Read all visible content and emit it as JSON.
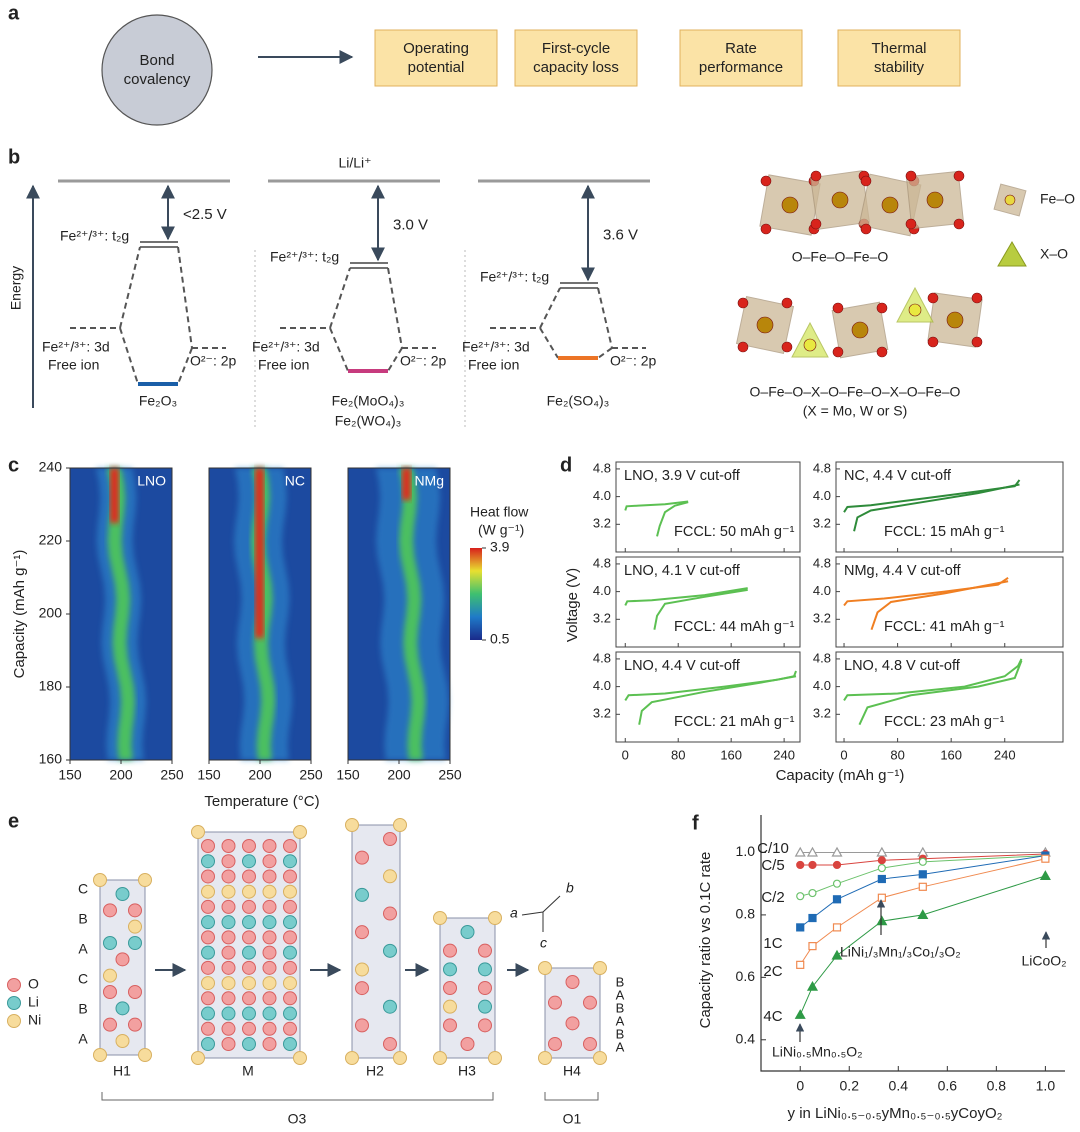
{
  "panel_labels": [
    "a",
    "b",
    "c",
    "d",
    "e",
    "f"
  ],
  "panel_a": {
    "circle": [
      "Bond",
      "covalency"
    ],
    "boxes": [
      [
        "Operating",
        "potential"
      ],
      [
        "First-cycle",
        "capacity loss"
      ],
      [
        "Rate",
        "performance"
      ],
      [
        "Thermal",
        "stability"
      ]
    ]
  },
  "panel_b": {
    "axis_label": "Energy",
    "reference": "Li/Li⁺",
    "diagrams": [
      {
        "gap": "<2.5 V",
        "t2g": "Fe²⁺/³⁺: t₂g",
        "d_level": "Fe²⁺/³⁺: 3d",
        "free_ion": "Free ion",
        "o_level": "O²⁻: 2p",
        "compounds": [
          "Fe₂O₃"
        ],
        "color": "#1a5fa8"
      },
      {
        "gap": "3.0 V",
        "t2g": "Fe²⁺/³⁺: t₂g",
        "d_level": "Fe²⁺/³⁺: 3d",
        "free_ion": "Free ion",
        "o_level": "O²⁻: 2p",
        "compounds": [
          "Fe₂(MoO₄)₃",
          "Fe₂(WO₄)₃"
        ],
        "color": "#c73b7e"
      },
      {
        "gap": "3.6 V",
        "t2g": "Fe²⁺/³⁺: t₂g",
        "d_level": "Fe²⁺/³⁺: 3d",
        "free_ion": "Free ion",
        "o_level": "O²⁻: 2p",
        "compounds": [
          "Fe₂(SO₄)₃"
        ],
        "color": "#ec7426"
      }
    ],
    "structures": {
      "chain_1": "O–Fe–O–Fe–O",
      "chain_2": "O–Fe–O–X–O–Fe–O–X–O–Fe–O",
      "note": "(X = Mo, W or S)",
      "legend": [
        "Fe–O",
        "X–O"
      ]
    }
  },
  "panel_e": {
    "legend": [
      "O",
      "Li",
      "Ni"
    ],
    "stacking_h1": [
      "C",
      "B",
      "A",
      "C",
      "B",
      "A"
    ],
    "stacking_h4": [
      "B",
      "A",
      "B",
      "A",
      "B",
      "A"
    ],
    "phases": [
      "H1",
      "M",
      "H2",
      "H3",
      "H4"
    ],
    "groups": [
      "O3",
      "O1"
    ],
    "axes": [
      "a",
      "b",
      "c"
    ]
  },
  "chart_data": [
    {
      "type": "heatmap",
      "panels": [
        "LNO",
        "NC",
        "NMg"
      ],
      "xlabel": "Temperature (°C)",
      "ylabel": "Capacity (mAh g⁻¹)",
      "xlim": [
        150,
        250
      ],
      "xticks": [
        150,
        200,
        250
      ],
      "ylim": [
        160,
        240
      ],
      "yticks": [
        160,
        180,
        200,
        220,
        240
      ],
      "colorbar": {
        "label": [
          "Heat flow",
          "(W g⁻¹)"
        ],
        "lim": [
          0.5,
          3.9
        ],
        "ticks": [
          0.5,
          3.9
        ]
      }
    },
    {
      "type": "line",
      "xlabel": "Capacity (mAh g⁻¹)",
      "ylabel": "Voltage (V)",
      "ylim": [
        2.4,
        5.0
      ],
      "yticks": [
        3.2,
        {
          "value": 4,
          "label": "4.0"
        },
        4.8
      ],
      "xticks": [
        0,
        80,
        160,
        240
      ],
      "subplots": [
        {
          "title": "LNO, 3.9 V cut-off",
          "note": "FCCL: 50 mAh g⁻¹",
          "color": "#5cc052",
          "xlim": [
            -14,
            264
          ],
          "charge": {
            "x": [
              0,
              2,
              20,
              60,
              95
            ],
            "values": [
              3.6,
              3.72,
              3.74,
              3.78,
              3.86
            ]
          },
          "discharge": {
            "x": [
              95,
              75,
              60,
              52,
              48
            ],
            "values": [
              3.84,
              3.74,
              3.55,
              3.15,
              2.85
            ]
          }
        },
        {
          "title": "NC, 4.4 V cut-off",
          "note": "FCCL: 15 mAh g⁻¹",
          "color": "#2e8b3a",
          "xlim": [
            -12,
            327
          ],
          "charge": {
            "x": [
              0,
              5,
              40,
              120,
              200,
              255,
              262
            ],
            "values": [
              3.55,
              3.7,
              3.75,
              3.95,
              4.15,
              4.3,
              4.48
            ]
          },
          "discharge": {
            "x": [
              262,
              200,
              120,
              40,
              20,
              15
            ],
            "values": [
              4.35,
              4.1,
              3.85,
              3.6,
              3.4,
              3.0
            ]
          }
        },
        {
          "title": "LNO, 4.1 V cut-off",
          "note": "FCCL: 44 mAh g⁻¹",
          "color": "#5cc052",
          "xlim": [
            -14,
            264
          ],
          "charge": {
            "x": [
              0,
              3,
              40,
              120,
              185
            ],
            "values": [
              3.6,
              3.72,
              3.75,
              3.9,
              4.1
            ]
          },
          "discharge": {
            "x": [
              185,
              120,
              60,
              48,
              44
            ],
            "values": [
              4.05,
              3.85,
              3.65,
              3.3,
              2.9
            ]
          }
        },
        {
          "title": "NMg, 4.4 V cut-off",
          "note": "FCCL: 41 mAh g⁻¹",
          "color": "#f07f22",
          "xlim": [
            -12,
            327
          ],
          "charge": {
            "x": [
              0,
              5,
              60,
              150,
              230,
              245
            ],
            "values": [
              3.6,
              3.72,
              3.8,
              4.0,
              4.2,
              4.4
            ]
          },
          "discharge": {
            "x": [
              245,
              150,
              70,
              50,
              41
            ],
            "values": [
              4.3,
              3.95,
              3.7,
              3.4,
              2.9
            ]
          }
        },
        {
          "title": "LNO, 4.4 V cut-off",
          "note": "FCCL: 21 mAh g⁻¹",
          "color": "#5cc052",
          "xlim": [
            -14,
            264
          ],
          "charge": {
            "x": [
              0,
              5,
              60,
              150,
              230,
              255,
              258
            ],
            "values": [
              3.6,
              3.75,
              3.8,
              4.0,
              4.2,
              4.3,
              4.45
            ]
          },
          "discharge": {
            "x": [
              258,
              200,
              120,
              40,
              25,
              21
            ],
            "values": [
              4.3,
              4.1,
              3.85,
              3.55,
              3.3,
              2.9
            ]
          }
        },
        {
          "title": "LNO, 4.8 V cut-off",
          "note": "FCCL: 23 mAh g⁻¹",
          "color": "#5cc052",
          "xlim": [
            -12,
            327
          ],
          "charge": {
            "x": [
              0,
              5,
              80,
              180,
              240,
              260,
              265
            ],
            "values": [
              3.6,
              3.75,
              3.8,
              4.0,
              4.3,
              4.6,
              4.8
            ]
          },
          "discharge": {
            "x": [
              265,
              255,
              200,
              100,
              35,
              23
            ],
            "values": [
              4.75,
              4.25,
              4.0,
              3.75,
              3.4,
              2.9
            ]
          }
        }
      ]
    },
    {
      "type": "line",
      "xlabel": "y in LiNi₀.₅₋₀.₅yMn₀.₅₋₀.₅yCoyO₂",
      "ylabel": "Capacity ratio vs 0.1C rate",
      "x": [
        0,
        0.05,
        0.15,
        0.333,
        0.5,
        1
      ],
      "xlim": [
        -0.16,
        1.08
      ],
      "xticks": [
        0,
        0.2,
        0.4,
        0.6,
        0.8,
        {
          "value": 1,
          "label": "1.0"
        }
      ],
      "ylim": [
        0.3,
        1.12
      ],
      "yticks": [
        0.4,
        0.6,
        0.8,
        {
          "value": 1,
          "label": "1.0"
        }
      ],
      "series": [
        {
          "name": "C/10",
          "color": "#9a9a9a",
          "marker": "triangle",
          "filled": false,
          "values": [
            1.0,
            1.0,
            1.0,
            1.0,
            1.0,
            1.0
          ]
        },
        {
          "name": "C/5",
          "color": "#d9443f",
          "marker": "circle",
          "filled": true,
          "values": [
            0.96,
            0.96,
            0.96,
            0.975,
            0.98,
            0.995
          ]
        },
        {
          "name": "C/2",
          "color": "#6cc26c",
          "marker": "circle",
          "filled": false,
          "values": [
            0.86,
            0.87,
            0.9,
            0.95,
            0.97,
            0.99
          ]
        },
        {
          "name": "1C",
          "color": "#1f6bb5",
          "marker": "square",
          "filled": true,
          "values": [
            0.76,
            0.79,
            0.85,
            0.915,
            0.93,
            0.99
          ]
        },
        {
          "name": "2C",
          "color": "#f08a50",
          "marker": "square",
          "filled": false,
          "values": [
            0.64,
            0.7,
            0.76,
            0.855,
            0.89,
            0.98
          ]
        },
        {
          "name": "4C",
          "color": "#2e9a46",
          "marker": "triangle",
          "filled": true,
          "values": [
            0.48,
            0.57,
            0.67,
            0.78,
            0.8,
            0.925
          ]
        }
      ],
      "annotations": [
        "LiNi₀.₅Mn₀.₅O₂",
        "LiNi₁/₃Mn₁/₃Co₁/₃O₂",
        "LiCoO₂"
      ]
    }
  ]
}
